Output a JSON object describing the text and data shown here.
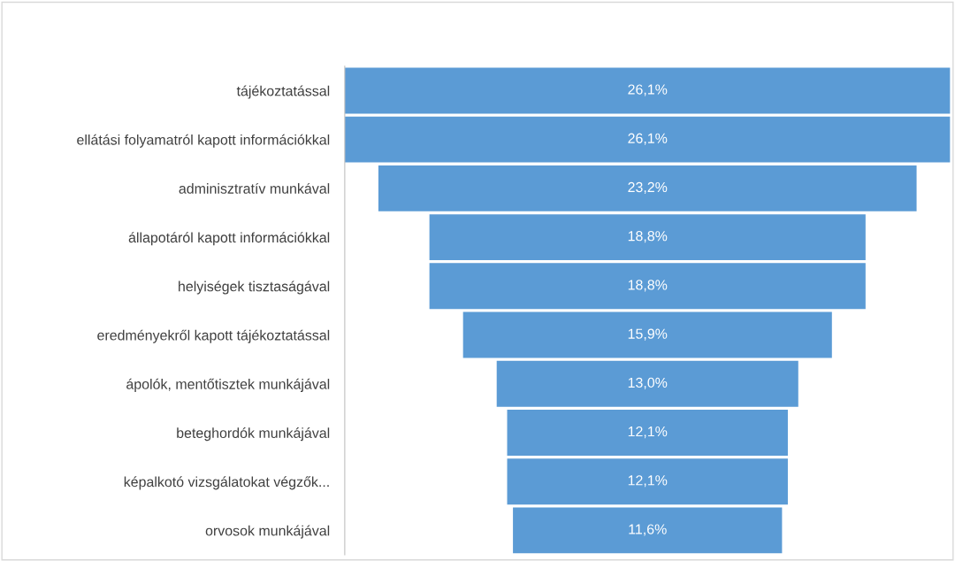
{
  "chart_data": {
    "type": "other",
    "categories": [
      "tájékoztatással",
      "ellátási folyamatról kapott információkkal",
      "adminisztratív munkával",
      "állapotáról kapott információkkal",
      "helyiségek tisztaságával",
      "eredményekről kapott tájékoztatással",
      "ápolók, mentőtisztek munkájával",
      "beteghordók munkájával",
      "képalkotó vizsgálatokat végzők...",
      "orvosok munkájával"
    ],
    "values": [
      26.1,
      26.1,
      23.2,
      18.8,
      18.8,
      15.9,
      13.0,
      12.1,
      12.1,
      11.6
    ],
    "value_labels": [
      "26,1%",
      "26,1%",
      "23,2%",
      "18,8%",
      "18,8%",
      "15,9%",
      "13,0%",
      "12,1%",
      "12,1%",
      "11,6%"
    ],
    "color": "#5b9bd5"
  }
}
